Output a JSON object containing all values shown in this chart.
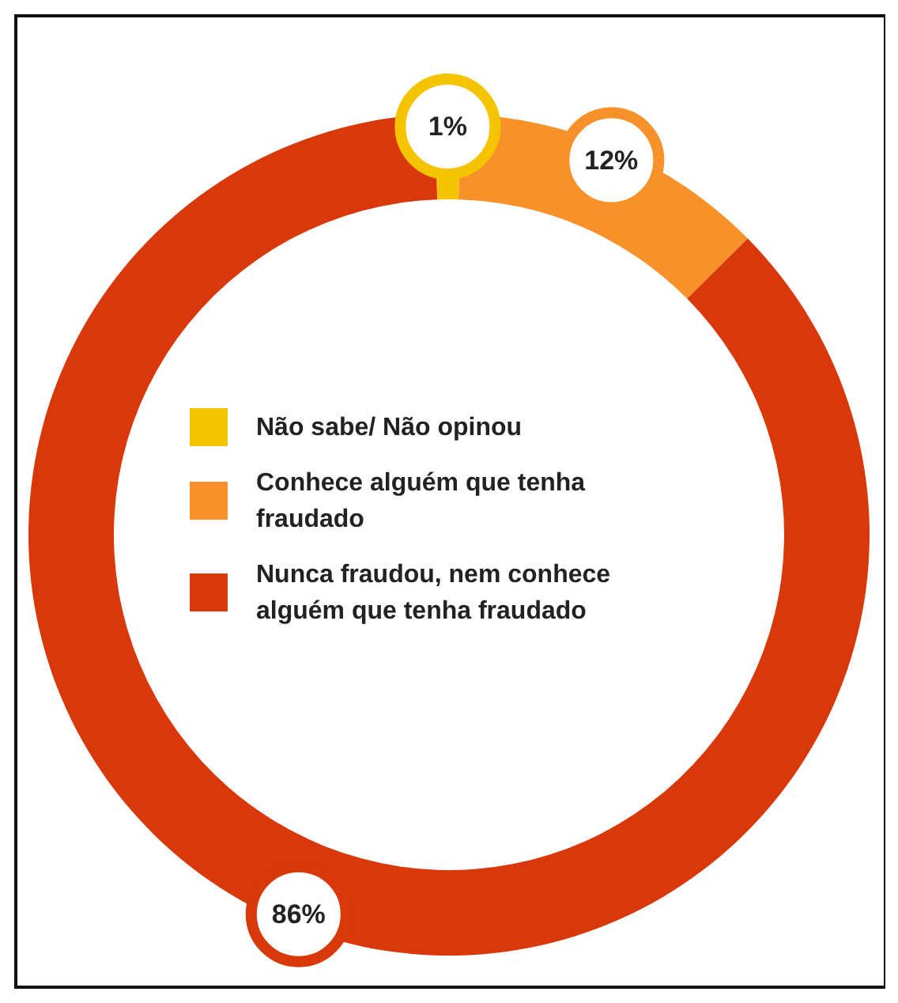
{
  "chart_data": {
    "type": "donut",
    "categories": [
      "Não sabe/ Não opinou",
      "Conhece alguém que tenha fraudado",
      "Nunca fraudou, nem conhece alguém que tenha fraudado"
    ],
    "values": [
      1,
      12,
      86
    ],
    "colors": [
      "#f5c400",
      "#f7922b",
      "#d8380a"
    ],
    "value_labels": [
      "1%",
      "12%",
      "86%"
    ],
    "legend": "center"
  }
}
